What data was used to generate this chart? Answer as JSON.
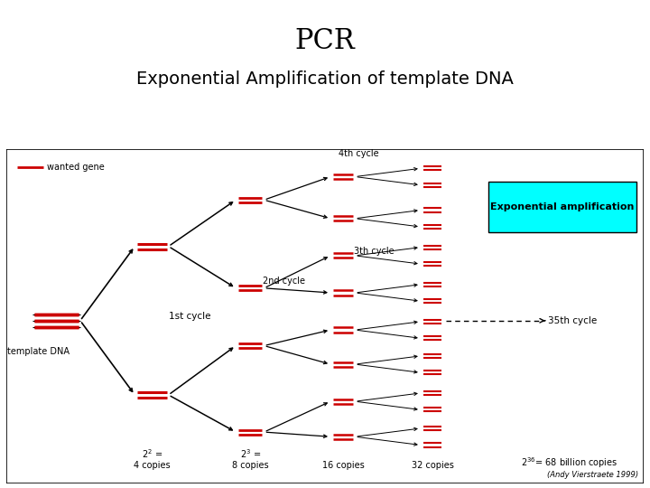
{
  "title": "PCR",
  "subtitle": "Exponential Amplification of template DNA",
  "title_fontsize": 22,
  "subtitle_fontsize": 14,
  "bg_color": "#ffffff",
  "cyan_box_color": "#00ffff",
  "red_color": "#cc0000",
  "black_color": "#000000",
  "legend_line": "wanted gene",
  "bottom_credit": "(Andy Vierstraete 1999)",
  "label_template": "template DNA",
  "label_1st": "1st cycle",
  "label_2nd": "2nd cycle",
  "label_3th": "3th cycle",
  "label_4th": "4th cycle",
  "label_35th": "35th cycle",
  "label_exp": "Exponential amplification"
}
